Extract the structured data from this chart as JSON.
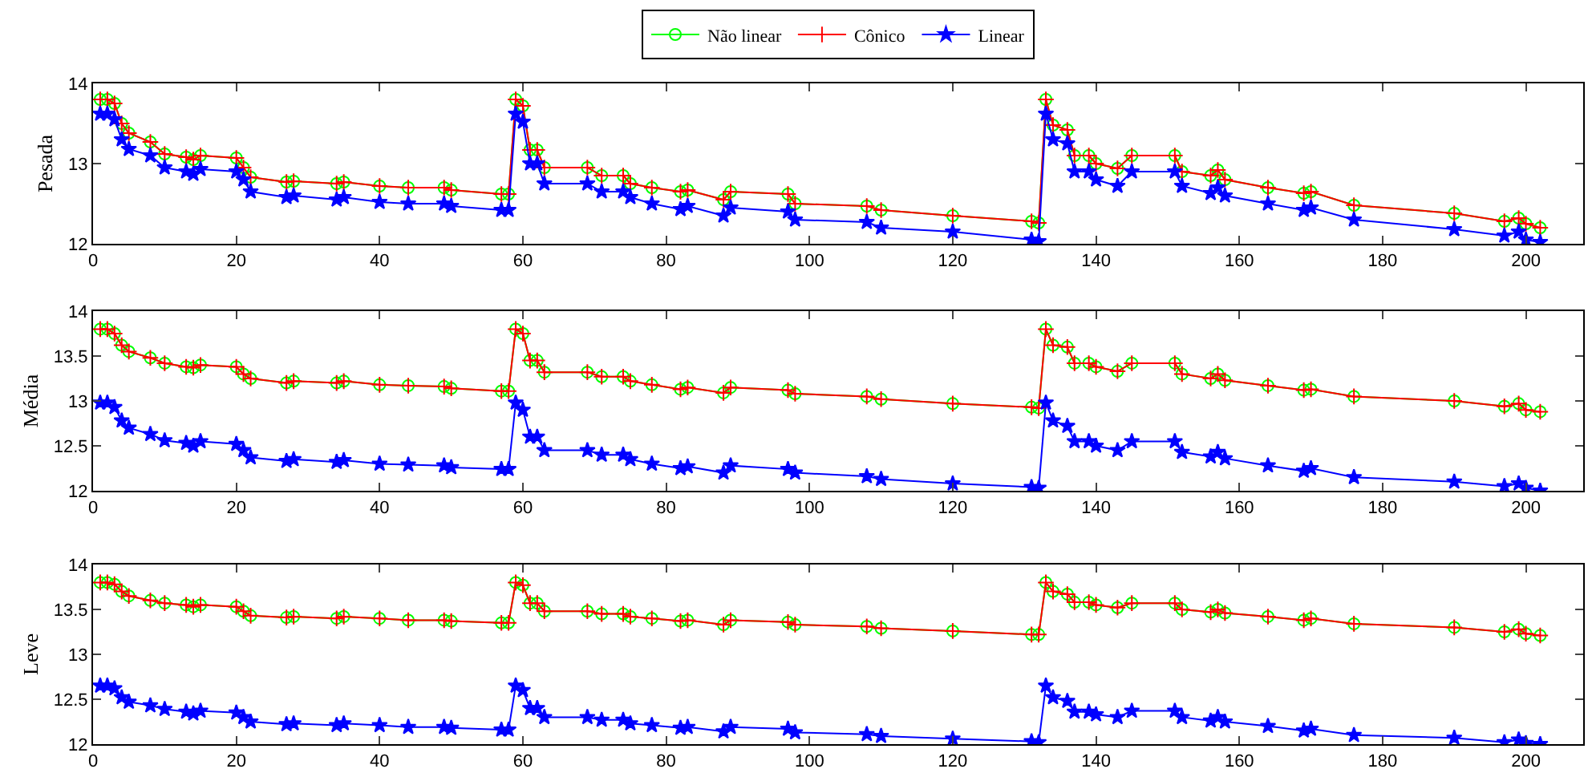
{
  "chart_data": [
    {
      "type": "line",
      "ylabel": "Pesada",
      "legend": "top",
      "xlim": [
        0,
        208
      ],
      "xticks": [
        0,
        20,
        40,
        60,
        80,
        100,
        120,
        140,
        160,
        180,
        200
      ],
      "ylim": [
        12,
        14
      ],
      "yticks": [
        12,
        13,
        14
      ],
      "x": [
        1,
        2,
        3,
        4,
        5,
        8,
        10,
        13,
        14,
        15,
        20,
        21,
        22,
        27,
        28,
        34,
        35,
        40,
        44,
        49,
        50,
        57,
        58,
        59,
        60,
        61,
        62,
        63,
        69,
        71,
        74,
        75,
        78,
        82,
        83,
        88,
        89,
        97,
        98,
        108,
        110,
        120,
        131,
        132,
        133,
        134,
        136,
        137,
        139,
        140,
        143,
        145,
        151,
        152,
        156,
        157,
        158,
        164,
        169,
        170,
        176,
        190,
        197,
        199,
        200,
        202
      ],
      "series": [
        {
          "name": "Não linear",
          "color": "#00ff00",
          "marker": "circle",
          "values": [
            13.8,
            13.8,
            13.75,
            13.5,
            13.38,
            13.27,
            13.12,
            13.08,
            13.05,
            13.1,
            13.07,
            12.95,
            12.83,
            12.77,
            12.78,
            12.75,
            12.77,
            12.72,
            12.7,
            12.7,
            12.67,
            12.62,
            12.62,
            13.8,
            13.72,
            13.17,
            13.17,
            12.95,
            12.95,
            12.85,
            12.85,
            12.75,
            12.7,
            12.65,
            12.67,
            12.55,
            12.65,
            12.62,
            12.5,
            12.47,
            12.42,
            12.35,
            12.28,
            12.26,
            13.8,
            13.48,
            13.42,
            13.1,
            13.1,
            13.0,
            12.94,
            13.1,
            13.1,
            12.9,
            12.85,
            12.92,
            12.8,
            12.7,
            12.63,
            12.65,
            12.48,
            12.38,
            12.28,
            12.32,
            12.25,
            12.2
          ]
        },
        {
          "name": "Cônico",
          "color": "#ff0000",
          "marker": "cross",
          "values": [
            13.8,
            13.8,
            13.75,
            13.5,
            13.38,
            13.27,
            13.12,
            13.08,
            13.05,
            13.1,
            13.07,
            12.95,
            12.83,
            12.77,
            12.78,
            12.75,
            12.77,
            12.72,
            12.7,
            12.7,
            12.67,
            12.62,
            12.62,
            13.8,
            13.72,
            13.17,
            13.17,
            12.95,
            12.95,
            12.85,
            12.85,
            12.75,
            12.7,
            12.65,
            12.67,
            12.55,
            12.65,
            12.62,
            12.5,
            12.47,
            12.42,
            12.35,
            12.28,
            12.26,
            13.8,
            13.48,
            13.42,
            13.1,
            13.1,
            13.0,
            12.94,
            13.1,
            13.1,
            12.9,
            12.85,
            12.92,
            12.8,
            12.7,
            12.63,
            12.65,
            12.48,
            12.38,
            12.28,
            12.32,
            12.25,
            12.2
          ]
        },
        {
          "name": "Linear",
          "color": "#0000ff",
          "marker": "star",
          "values": [
            13.62,
            13.62,
            13.55,
            13.3,
            13.18,
            13.1,
            12.95,
            12.9,
            12.87,
            12.93,
            12.9,
            12.8,
            12.65,
            12.58,
            12.6,
            12.55,
            12.58,
            12.52,
            12.5,
            12.5,
            12.47,
            12.42,
            12.42,
            13.62,
            13.52,
            13.0,
            13.0,
            12.75,
            12.75,
            12.65,
            12.65,
            12.58,
            12.5,
            12.43,
            12.47,
            12.35,
            12.45,
            12.4,
            12.3,
            12.27,
            12.2,
            12.15,
            12.05,
            12.03,
            13.62,
            13.3,
            13.25,
            12.9,
            12.9,
            12.8,
            12.72,
            12.9,
            12.9,
            12.72,
            12.63,
            12.7,
            12.6,
            12.5,
            12.42,
            12.45,
            12.3,
            12.18,
            12.1,
            12.15,
            12.05,
            12.02
          ]
        }
      ]
    },
    {
      "type": "line",
      "ylabel": "Média",
      "xlim": [
        0,
        208
      ],
      "xticks": [
        0,
        20,
        40,
        60,
        80,
        100,
        120,
        140,
        160,
        180,
        200
      ],
      "ylim": [
        12,
        14
      ],
      "yticks": [
        12,
        12.5,
        13,
        13.5,
        14
      ],
      "x": [
        1,
        2,
        3,
        4,
        5,
        8,
        10,
        13,
        14,
        15,
        20,
        21,
        22,
        27,
        28,
        34,
        35,
        40,
        44,
        49,
        50,
        57,
        58,
        59,
        60,
        61,
        62,
        63,
        69,
        71,
        74,
        75,
        78,
        82,
        83,
        88,
        89,
        97,
        98,
        108,
        110,
        120,
        131,
        132,
        133,
        134,
        136,
        137,
        139,
        140,
        143,
        145,
        151,
        152,
        156,
        157,
        158,
        164,
        169,
        170,
        176,
        190,
        197,
        199,
        200,
        202
      ],
      "series": [
        {
          "color": "#00ff00",
          "marker": "circle",
          "values": [
            13.8,
            13.8,
            13.75,
            13.62,
            13.55,
            13.48,
            13.42,
            13.38,
            13.37,
            13.4,
            13.38,
            13.3,
            13.25,
            13.2,
            13.22,
            13.2,
            13.22,
            13.18,
            13.17,
            13.16,
            13.14,
            13.11,
            13.11,
            13.8,
            13.75,
            13.45,
            13.45,
            13.32,
            13.32,
            13.27,
            13.27,
            13.22,
            13.18,
            13.13,
            13.15,
            13.09,
            13.15,
            13.12,
            13.08,
            13.05,
            13.02,
            12.97,
            12.93,
            12.92,
            13.8,
            13.62,
            13.6,
            13.42,
            13.42,
            13.38,
            13.33,
            13.42,
            13.42,
            13.3,
            13.25,
            13.3,
            13.23,
            13.17,
            13.12,
            13.13,
            13.05,
            13.0,
            12.94,
            12.97,
            12.9,
            12.88
          ]
        },
        {
          "color": "#ff0000",
          "marker": "cross",
          "values": [
            13.8,
            13.8,
            13.75,
            13.62,
            13.55,
            13.48,
            13.42,
            13.38,
            13.37,
            13.4,
            13.38,
            13.3,
            13.25,
            13.2,
            13.22,
            13.2,
            13.22,
            13.18,
            13.17,
            13.16,
            13.14,
            13.11,
            13.11,
            13.8,
            13.75,
            13.45,
            13.45,
            13.32,
            13.32,
            13.27,
            13.27,
            13.22,
            13.18,
            13.13,
            13.15,
            13.09,
            13.15,
            13.12,
            13.08,
            13.05,
            13.02,
            12.97,
            12.93,
            12.92,
            13.8,
            13.62,
            13.6,
            13.42,
            13.42,
            13.38,
            13.33,
            13.42,
            13.42,
            13.3,
            13.25,
            13.3,
            13.23,
            13.17,
            13.12,
            13.13,
            13.05,
            13.0,
            12.94,
            12.97,
            12.9,
            12.88
          ]
        },
        {
          "color": "#0000ff",
          "marker": "star",
          "values": [
            12.98,
            12.98,
            12.93,
            12.78,
            12.7,
            12.63,
            12.56,
            12.53,
            12.5,
            12.55,
            12.52,
            12.45,
            12.37,
            12.33,
            12.35,
            12.32,
            12.34,
            12.3,
            12.29,
            12.28,
            12.26,
            12.24,
            12.24,
            12.98,
            12.9,
            12.6,
            12.6,
            12.45,
            12.45,
            12.4,
            12.4,
            12.35,
            12.3,
            12.25,
            12.27,
            12.2,
            12.28,
            12.24,
            12.2,
            12.16,
            12.13,
            12.08,
            12.04,
            12.03,
            12.98,
            12.78,
            12.72,
            12.55,
            12.55,
            12.5,
            12.45,
            12.55,
            12.55,
            12.43,
            12.38,
            12.43,
            12.36,
            12.28,
            12.22,
            12.25,
            12.15,
            12.1,
            12.05,
            12.08,
            12.03,
            12.0
          ]
        }
      ]
    },
    {
      "type": "line",
      "ylabel": "Leve",
      "xlim": [
        0,
        208
      ],
      "xticks": [
        0,
        20,
        40,
        60,
        80,
        100,
        120,
        140,
        160,
        180,
        200
      ],
      "ylim": [
        12,
        14
      ],
      "yticks": [
        12,
        12.5,
        13,
        13.5,
        14
      ],
      "x": [
        1,
        2,
        3,
        4,
        5,
        8,
        10,
        13,
        14,
        15,
        20,
        21,
        22,
        27,
        28,
        34,
        35,
        40,
        44,
        49,
        50,
        57,
        58,
        59,
        60,
        61,
        62,
        63,
        69,
        71,
        74,
        75,
        78,
        82,
        83,
        88,
        89,
        97,
        98,
        108,
        110,
        120,
        131,
        132,
        133,
        134,
        136,
        137,
        139,
        140,
        143,
        145,
        151,
        152,
        156,
        157,
        158,
        164,
        169,
        170,
        176,
        190,
        197,
        199,
        200,
        202
      ],
      "series": [
        {
          "color": "#00ff00",
          "marker": "circle",
          "values": [
            13.8,
            13.8,
            13.78,
            13.7,
            13.65,
            13.6,
            13.57,
            13.55,
            13.53,
            13.55,
            13.53,
            13.48,
            13.43,
            13.41,
            13.42,
            13.4,
            13.42,
            13.4,
            13.38,
            13.38,
            13.37,
            13.35,
            13.35,
            13.8,
            13.77,
            13.57,
            13.57,
            13.48,
            13.48,
            13.45,
            13.45,
            13.42,
            13.4,
            13.37,
            13.38,
            13.33,
            13.38,
            13.36,
            13.33,
            13.31,
            13.29,
            13.26,
            13.22,
            13.22,
            13.8,
            13.7,
            13.67,
            13.58,
            13.58,
            13.55,
            13.52,
            13.57,
            13.57,
            13.5,
            13.47,
            13.5,
            13.46,
            13.42,
            13.38,
            13.4,
            13.34,
            13.3,
            13.25,
            13.28,
            13.23,
            13.21
          ]
        },
        {
          "color": "#ff0000",
          "marker": "cross",
          "values": [
            13.8,
            13.8,
            13.78,
            13.7,
            13.65,
            13.6,
            13.57,
            13.55,
            13.53,
            13.55,
            13.53,
            13.48,
            13.43,
            13.41,
            13.42,
            13.4,
            13.42,
            13.4,
            13.38,
            13.38,
            13.37,
            13.35,
            13.35,
            13.8,
            13.77,
            13.57,
            13.57,
            13.48,
            13.48,
            13.45,
            13.45,
            13.42,
            13.4,
            13.37,
            13.38,
            13.33,
            13.38,
            13.36,
            13.33,
            13.31,
            13.29,
            13.26,
            13.22,
            13.22,
            13.8,
            13.7,
            13.67,
            13.58,
            13.58,
            13.55,
            13.52,
            13.57,
            13.57,
            13.5,
            13.47,
            13.5,
            13.46,
            13.42,
            13.38,
            13.4,
            13.34,
            13.3,
            13.25,
            13.28,
            13.23,
            13.21
          ]
        },
        {
          "color": "#0000ff",
          "marker": "star",
          "values": [
            12.65,
            12.65,
            12.62,
            12.52,
            12.47,
            12.43,
            12.39,
            12.36,
            12.34,
            12.37,
            12.35,
            12.3,
            12.25,
            12.22,
            12.23,
            12.21,
            12.23,
            12.21,
            12.19,
            12.19,
            12.18,
            12.16,
            12.16,
            12.65,
            12.6,
            12.4,
            12.4,
            12.3,
            12.3,
            12.27,
            12.27,
            12.23,
            12.21,
            12.18,
            12.19,
            12.14,
            12.19,
            12.17,
            12.13,
            12.11,
            12.09,
            12.06,
            12.03,
            12.02,
            12.65,
            12.52,
            12.48,
            12.36,
            12.36,
            12.33,
            12.3,
            12.37,
            12.37,
            12.3,
            12.26,
            12.3,
            12.25,
            12.2,
            12.15,
            12.17,
            12.1,
            12.07,
            12.02,
            12.05,
            12.01,
            12.0
          ]
        }
      ]
    }
  ]
}
